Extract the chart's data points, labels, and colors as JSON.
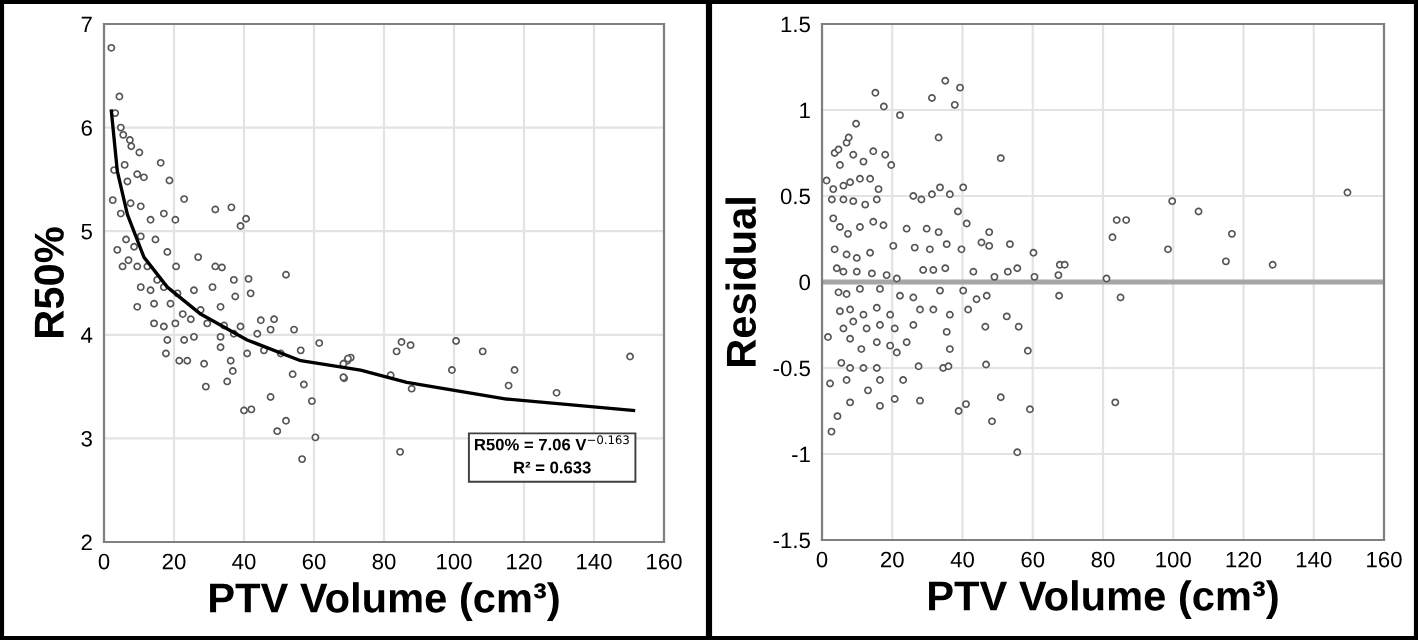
{
  "chart_data": [
    {
      "type": "scatter",
      "xlabel": "PTV Volume (cm³)",
      "ylabel": "R50%",
      "xlim": [
        0,
        160
      ],
      "xticks": [
        0,
        20,
        40,
        60,
        80,
        100,
        120,
        140,
        160
      ],
      "ylim": [
        2,
        7
      ],
      "yticks": [
        2,
        3,
        4,
        5,
        6,
        7
      ],
      "grid": true,
      "legend": false,
      "annotations": [
        "R50% = 7.06 V$^{−0.163}$\nR² = 0.633"
      ],
      "series": [
        {
          "marker": "circle",
          "color": "#555555",
          "x": [
            2.1,
            4.4,
            3.2,
            4.8,
            5.5,
            7.4,
            7.8,
            10.1,
            16.2,
            18.7,
            22.9,
            2.9,
            5.9,
            6.7,
            9.5,
            11.4,
            2.5,
            4.8,
            7.6,
            10.5,
            13.3,
            17.1,
            20.4,
            31.8,
            36.4,
            40.6,
            39,
            3.8,
            6.3,
            8.6,
            10.5,
            14.7,
            18.1,
            7,
            5.3,
            9.5,
            12.4,
            15.2,
            20.6,
            26.9,
            31.8,
            33.7,
            52,
            10.5,
            13.3,
            17.1,
            21,
            25.7,
            31,
            37.1,
            41.3,
            9.5,
            14.3,
            19,
            22.5,
            27.6,
            33.3,
            37.5,
            41.9,
            14.3,
            17.1,
            20.4,
            24.8,
            29.5,
            34.3,
            39,
            44.8,
            48.6,
            18.1,
            22.9,
            25.7,
            33.3,
            37.1,
            43.8,
            47.6,
            54.3,
            17.7,
            21.5,
            23.8,
            28.6,
            33.3,
            36.2,
            40.9,
            45.7,
            50.5,
            56.2,
            61.5,
            29.1,
            35.2,
            36.8,
            40,
            42.1,
            47.6,
            53.9,
            57.1,
            59.4,
            52,
            49.5,
            60.4,
            56.6,
            68.6,
            69.5,
            70.5,
            68.4,
            68.4,
            69.7,
            85,
            87.6,
            83.6,
            81.9,
            87.9,
            84.6,
            100.6,
            99.4,
            108.2,
            117.3,
            115.6,
            129.3,
            150.3
          ],
          "values": [
            6.77,
            6.3,
            6.14,
            6.0,
            5.93,
            5.88,
            5.82,
            5.76,
            5.66,
            5.49,
            5.31,
            5.59,
            5.64,
            5.48,
            5.55,
            5.52,
            5.3,
            5.17,
            5.27,
            5.24,
            5.11,
            5.17,
            5.11,
            5.21,
            5.23,
            5.12,
            5.05,
            4.82,
            4.92,
            4.85,
            4.95,
            4.92,
            4.8,
            4.72,
            4.66,
            4.66,
            4.66,
            4.53,
            4.66,
            4.75,
            4.66,
            4.65,
            4.58,
            4.46,
            4.43,
            4.46,
            4.4,
            4.43,
            4.46,
            4.53,
            4.54,
            4.27,
            4.3,
            4.3,
            4.2,
            4.24,
            4.27,
            4.37,
            4.4,
            4.11,
            4.08,
            4.11,
            4.15,
            4.11,
            4.09,
            4.08,
            4.14,
            4.15,
            3.95,
            3.95,
            3.98,
            3.98,
            4.01,
            4.01,
            4.05,
            4.05,
            3.82,
            3.75,
            3.75,
            3.72,
            3.88,
            3.75,
            3.82,
            3.85,
            3.82,
            3.85,
            3.92,
            3.5,
            3.55,
            3.65,
            3.27,
            3.28,
            3.4,
            3.62,
            3.52,
            3.36,
            3.17,
            3.07,
            3.01,
            2.8,
            3.58,
            3.75,
            3.78,
            3.72,
            3.59,
            3.77,
            3.93,
            3.9,
            3.84,
            3.61,
            3.48,
            2.87,
            3.94,
            3.66,
            3.84,
            3.66,
            3.51,
            3.44,
            3.79
          ]
        },
        {
          "type": "line",
          "marker": "none",
          "color": "#000000",
          "x": [
            2.1,
            3.8,
            6.7,
            11.4,
            18.1,
            27.6,
            40.9,
            56.2,
            73.3,
            86.5,
            115,
            151.3
          ],
          "values": [
            6.16,
            5.58,
            5.16,
            4.75,
            4.46,
            4.2,
            3.95,
            3.75,
            3.66,
            3.54,
            3.38,
            3.27
          ]
        }
      ]
    },
    {
      "type": "scatter",
      "xlabel": "PTV Volume (cm³)",
      "ylabel": "Residual",
      "xlim": [
        0,
        160
      ],
      "xticks": [
        0,
        20,
        40,
        60,
        80,
        100,
        120,
        140,
        160
      ],
      "ylim": [
        -1.5,
        1.5
      ],
      "yticks": [
        -1.5,
        -1,
        -0.5,
        0,
        0.5,
        1,
        1.5
      ],
      "grid": true,
      "marker": "circle",
      "legend": false,
      "ref_lines": [
        {
          "axis": "y",
          "value": 0,
          "color": "#a6a6a6"
        }
      ],
      "series": [
        {
          "color": "#555555",
          "x": [
            1.3,
            3.6,
            4.7,
            7,
            7.6,
            9.7,
            15.2,
            17.6,
            22.2,
            31.3,
            35.1,
            39.3,
            37.8,
            33.2,
            50.9,
            5.1,
            8.9,
            11.8,
            14.6,
            18,
            19.7,
            3.2,
            6.1,
            8,
            10.8,
            13.7,
            16.1,
            2.8,
            6.1,
            8.9,
            12.3,
            15.6,
            26,
            28.3,
            31.3,
            33.6,
            36.4,
            40.2,
            38.7,
            41.2,
            47.6,
            3.2,
            5.1,
            7.4,
            10.8,
            14.6,
            17.5,
            24.1,
            29.8,
            33.2,
            3.6,
            7,
            9.9,
            13.7,
            20.3,
            26.4,
            30.7,
            35.5,
            39.7,
            45.4,
            47.6,
            53.5,
            60.2,
            4.2,
            6.1,
            9.9,
            14.2,
            18.4,
            28.8,
            31.7,
            35.1,
            43.1,
            49.1,
            52.9,
            55.6,
            60.5,
            4.7,
            7,
            10.8,
            16.5,
            21.3,
            22.2,
            26,
            33.6,
            40.2,
            44,
            46.9,
            5.1,
            8,
            11.8,
            15.6,
            19.4,
            27.9,
            31.7,
            36.4,
            41.6,
            6.1,
            8.9,
            12.7,
            16.5,
            20.7,
            26,
            35.5,
            46.5,
            52.6,
            56,
            1.7,
            8,
            11.2,
            15.6,
            19.4,
            21.3,
            24.1,
            36.4,
            58.6,
            5.5,
            8,
            11.8,
            15.6,
            27.5,
            34.5,
            36,
            46.7,
            2.3,
            7,
            13.1,
            16.5,
            20.7,
            23.1,
            27.9,
            16.5,
            8,
            4.4,
            2.7,
            38.9,
            41,
            48.4,
            50.9,
            59.2,
            55.6,
            67.7,
            67.3,
            67.5,
            69.1,
            81,
            85,
            82.7,
            83.9,
            86.6,
            83.5,
            99.7,
            107.2,
            98.5,
            116.7,
            115,
            128.3,
            149.6
          ],
          "values": [
            0.59,
            0.75,
            0.77,
            0.81,
            0.84,
            0.92,
            1.1,
            1.02,
            0.97,
            1.07,
            1.17,
            1.13,
            1.03,
            0.84,
            0.72,
            0.68,
            0.74,
            0.7,
            0.76,
            0.74,
            0.68,
            0.54,
            0.56,
            0.58,
            0.6,
            0.6,
            0.54,
            0.48,
            0.48,
            0.47,
            0.45,
            0.48,
            0.5,
            0.48,
            0.51,
            0.55,
            0.51,
            0.55,
            0.41,
            0.34,
            0.29,
            0.37,
            0.32,
            0.28,
            0.32,
            0.35,
            0.33,
            0.31,
            0.31,
            0.29,
            0.19,
            0.16,
            0.14,
            0.17,
            0.21,
            0.2,
            0.19,
            0.22,
            0.19,
            0.23,
            0.21,
            0.22,
            0.17,
            0.08,
            0.06,
            0.06,
            0.05,
            0.04,
            0.07,
            0.07,
            0.08,
            0.06,
            0.03,
            0.06,
            0.08,
            0.03,
            -0.06,
            -0.07,
            -0.04,
            -0.04,
            0.02,
            -0.08,
            -0.09,
            -0.05,
            -0.05,
            -0.1,
            -0.08,
            -0.17,
            -0.16,
            -0.19,
            -0.15,
            -0.19,
            -0.16,
            -0.16,
            -0.19,
            -0.16,
            -0.27,
            -0.23,
            -0.27,
            -0.25,
            -0.27,
            -0.25,
            -0.29,
            -0.26,
            -0.2,
            -0.26,
            -0.32,
            -0.33,
            -0.39,
            -0.35,
            -0.37,
            -0.41,
            -0.35,
            -0.39,
            -0.4,
            -0.47,
            -0.5,
            -0.5,
            -0.5,
            -0.49,
            -0.5,
            -0.49,
            -0.48,
            -0.59,
            -0.57,
            -0.63,
            -0.57,
            -0.68,
            -0.57,
            -0.69,
            -0.72,
            -0.7,
            -0.78,
            -0.87,
            -0.75,
            -0.71,
            -0.81,
            -0.67,
            -0.74,
            -0.99,
            0.1,
            0.04,
            -0.08,
            0.1,
            0.02,
            -0.09,
            0.26,
            0.36,
            0.36,
            -0.7,
            0.47,
            0.41,
            0.19,
            0.28,
            0.12,
            0.1,
            0.52
          ]
        }
      ]
    }
  ]
}
